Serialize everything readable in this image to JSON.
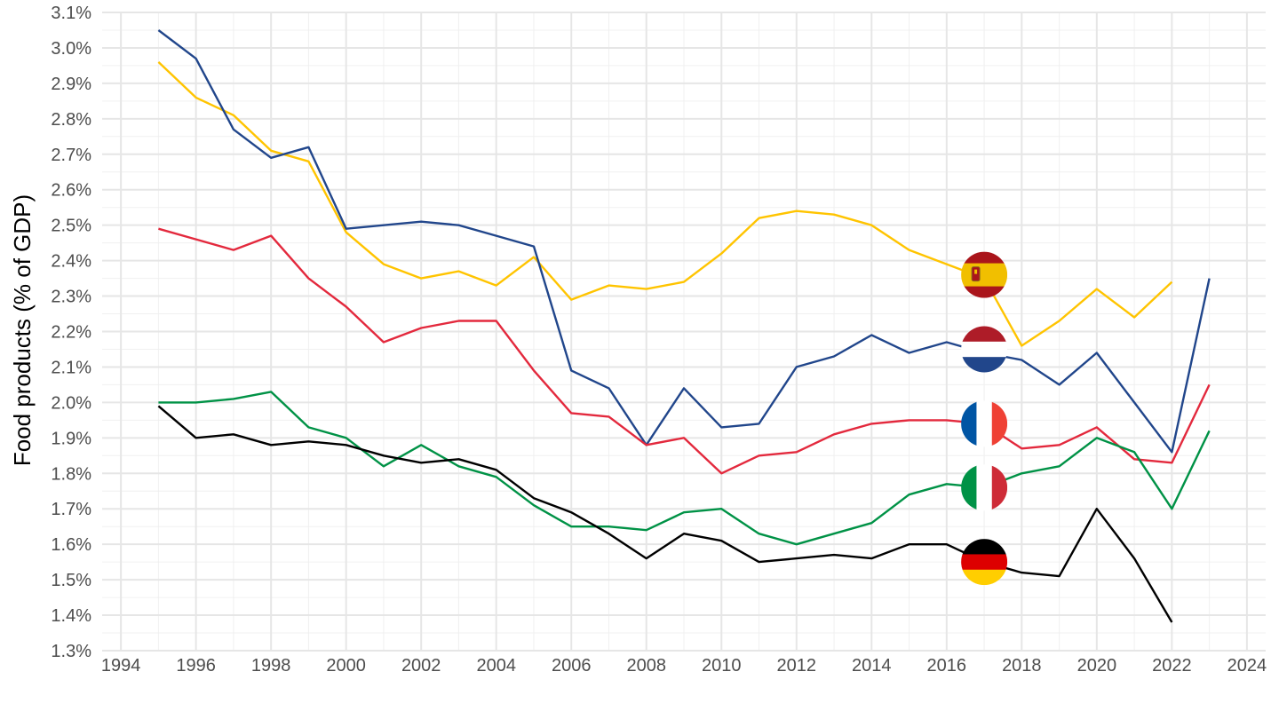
{
  "chart_data": {
    "type": "line",
    "title": "",
    "xlabel": "",
    "ylabel": "Food products (% of GDP)",
    "xlim": [
      1993.5,
      2024.5
    ],
    "ylim": [
      1.3,
      3.1
    ],
    "x_ticks": [
      1994,
      1996,
      1998,
      2000,
      2002,
      2004,
      2006,
      2008,
      2010,
      2012,
      2014,
      2016,
      2018,
      2020,
      2022,
      2024
    ],
    "y_ticks": [
      1.3,
      1.4,
      1.5,
      1.6,
      1.7,
      1.8,
      1.9,
      2.0,
      2.1,
      2.2,
      2.3,
      2.4,
      2.5,
      2.6,
      2.7,
      2.8,
      2.9,
      3.0,
      3.1
    ],
    "y_tick_labels": [
      "1.3%",
      "1.4%",
      "1.5%",
      "1.6%",
      "1.7%",
      "1.8%",
      "1.9%",
      "2.0%",
      "2.1%",
      "2.2%",
      "2.3%",
      "2.4%",
      "2.5%",
      "2.6%",
      "2.7%",
      "2.8%",
      "2.9%",
      "3.0%",
      "3.1%"
    ],
    "grid": true,
    "legend": "flag markers at 2017",
    "series": [
      {
        "flag": "spain",
        "color": "#FFC400",
        "x": [
          1995,
          1996,
          1997,
          1998,
          1999,
          2000,
          2001,
          2002,
          2003,
          2004,
          2005,
          2006,
          2007,
          2008,
          2009,
          2010,
          2011,
          2012,
          2013,
          2014,
          2015,
          2016,
          2017,
          2018,
          2019,
          2020,
          2021,
          2022
        ],
        "values": [
          2.96,
          2.86,
          2.81,
          2.71,
          2.68,
          2.48,
          2.39,
          2.35,
          2.37,
          2.33,
          2.41,
          2.29,
          2.33,
          2.32,
          2.34,
          2.42,
          2.52,
          2.54,
          2.53,
          2.5,
          2.43,
          2.39,
          2.35,
          2.16,
          2.23,
          2.32,
          2.24,
          2.34
        ]
      },
      {
        "flag": "netherlands",
        "color": "#21468B",
        "x": [
          1995,
          1996,
          1997,
          1998,
          1999,
          2000,
          2001,
          2002,
          2003,
          2004,
          2005,
          2006,
          2007,
          2008,
          2009,
          2010,
          2011,
          2012,
          2013,
          2014,
          2015,
          2016,
          2017,
          2018,
          2019,
          2020,
          2021,
          2022,
          2023
        ],
        "values": [
          3.05,
          2.97,
          2.77,
          2.69,
          2.72,
          2.49,
          2.5,
          2.51,
          2.5,
          2.47,
          2.44,
          2.09,
          2.04,
          1.88,
          2.04,
          1.93,
          1.94,
          2.1,
          2.13,
          2.19,
          2.14,
          2.17,
          2.14,
          2.12,
          2.05,
          2.14,
          2.0,
          1.86,
          2.35
        ]
      },
      {
        "flag": "france",
        "color": "#E3293D",
        "x": [
          1995,
          1996,
          1997,
          1998,
          1999,
          2000,
          2001,
          2002,
          2003,
          2004,
          2005,
          2006,
          2007,
          2008,
          2009,
          2010,
          2011,
          2012,
          2013,
          2014,
          2015,
          2016,
          2017,
          2018,
          2019,
          2020,
          2021,
          2022,
          2023
        ],
        "values": [
          2.49,
          2.46,
          2.43,
          2.47,
          2.35,
          2.27,
          2.17,
          2.21,
          2.23,
          2.23,
          2.09,
          1.97,
          1.96,
          1.88,
          1.9,
          1.8,
          1.85,
          1.86,
          1.91,
          1.94,
          1.95,
          1.95,
          1.94,
          1.87,
          1.88,
          1.93,
          1.84,
          1.83,
          2.05
        ]
      },
      {
        "flag": "italy",
        "color": "#009246",
        "x": [
          1995,
          1996,
          1997,
          1998,
          1999,
          2000,
          2001,
          2002,
          2003,
          2004,
          2005,
          2006,
          2007,
          2008,
          2009,
          2010,
          2011,
          2012,
          2013,
          2014,
          2015,
          2016,
          2017,
          2018,
          2019,
          2020,
          2021,
          2022,
          2023
        ],
        "values": [
          2.0,
          2.0,
          2.01,
          2.03,
          1.93,
          1.9,
          1.82,
          1.88,
          1.82,
          1.79,
          1.71,
          1.65,
          1.65,
          1.64,
          1.69,
          1.7,
          1.63,
          1.6,
          1.63,
          1.66,
          1.74,
          1.77,
          1.76,
          1.8,
          1.82,
          1.9,
          1.86,
          1.7,
          1.92
        ]
      },
      {
        "flag": "germany",
        "color": "#000000",
        "x": [
          1995,
          1996,
          1997,
          1998,
          1999,
          2000,
          2001,
          2002,
          2003,
          2004,
          2005,
          2006,
          2007,
          2008,
          2009,
          2010,
          2011,
          2012,
          2013,
          2014,
          2015,
          2016,
          2017,
          2018,
          2019,
          2020,
          2021,
          2022
        ],
        "values": [
          1.99,
          1.9,
          1.91,
          1.88,
          1.89,
          1.88,
          1.85,
          1.83,
          1.84,
          1.81,
          1.73,
          1.69,
          1.63,
          1.56,
          1.63,
          1.61,
          1.55,
          1.56,
          1.57,
          1.56,
          1.6,
          1.6,
          1.55,
          1.52,
          1.51,
          1.7,
          1.56,
          1.38
        ]
      }
    ],
    "flag_markers": [
      {
        "flag": "spain",
        "x": 2017,
        "y": 2.36
      },
      {
        "flag": "netherlands",
        "x": 2017,
        "y": 2.15
      },
      {
        "flag": "france",
        "x": 2017,
        "y": 1.94
      },
      {
        "flag": "italy",
        "x": 2017,
        "y": 1.76
      },
      {
        "flag": "germany",
        "x": 2017,
        "y": 1.55
      }
    ],
    "flag_colors": {
      "spain": [
        "#AA151B",
        "#F1BF00",
        "#AA151B"
      ],
      "netherlands": [
        "#AE1C28",
        "#FFFFFF",
        "#21468B"
      ],
      "france": [
        "#0055A4",
        "#FFFFFF",
        "#EF4135"
      ],
      "italy": [
        "#009246",
        "#FFFFFF",
        "#CE2B37"
      ],
      "germany": [
        "#000000",
        "#DD0000",
        "#FFCE00"
      ]
    }
  }
}
